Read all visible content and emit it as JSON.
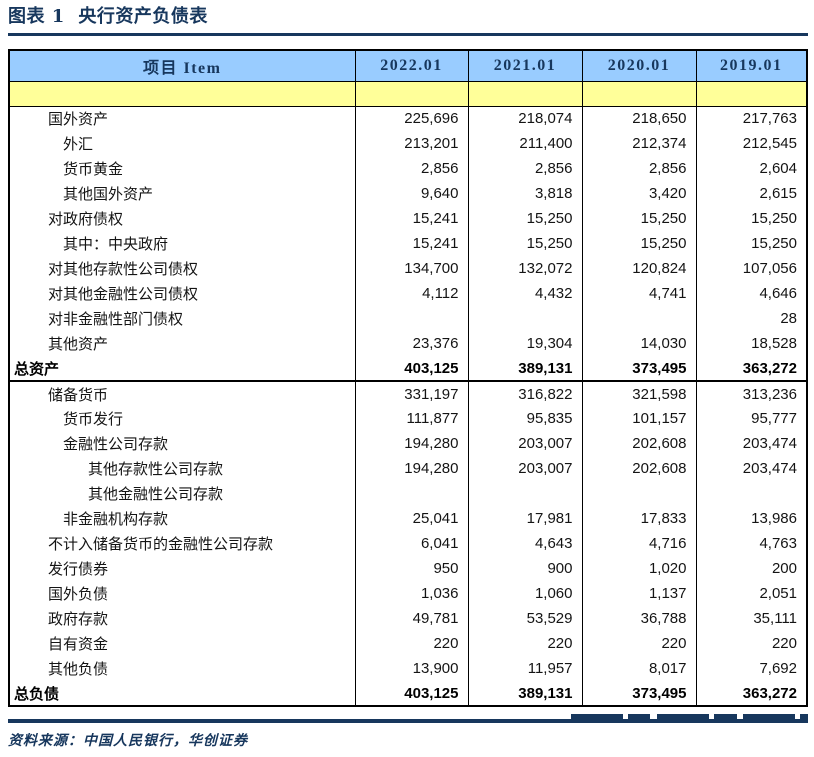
{
  "title": "图表 1  央行资产负债表",
  "source": "资料来源：中国人民银行，华创证券",
  "colors": {
    "navy": "#17375D",
    "headerBlue": "#99CCFF",
    "highlightYellow": "#FFFF99",
    "borderBlack": "#000000"
  },
  "table": {
    "header": [
      "项目 Item",
      "2022.01",
      "2021.01",
      "2020.01",
      "2019.01"
    ],
    "rows": [
      {
        "label": "国外资产",
        "indent": 1,
        "bold": false,
        "section_end": false,
        "values": [
          "225,696",
          "218,074",
          "218,650",
          "217,763"
        ]
      },
      {
        "label": "外汇",
        "indent": 2,
        "bold": false,
        "section_end": false,
        "values": [
          "213,201",
          "211,400",
          "212,374",
          "212,545"
        ]
      },
      {
        "label": "货币黄金",
        "indent": 2,
        "bold": false,
        "section_end": false,
        "values": [
          "2,856",
          "2,856",
          "2,856",
          "2,604"
        ]
      },
      {
        "label": "其他国外资产",
        "indent": 2,
        "bold": false,
        "section_end": false,
        "values": [
          "9,640",
          "3,818",
          "3,420",
          "2,615"
        ]
      },
      {
        "label": "对政府债权",
        "indent": 1,
        "bold": false,
        "section_end": false,
        "values": [
          "15,241",
          "15,250",
          "15,250",
          "15,250"
        ]
      },
      {
        "label": "其中：中央政府",
        "indent": 2,
        "bold": false,
        "section_end": false,
        "values": [
          "15,241",
          "15,250",
          "15,250",
          "15,250"
        ]
      },
      {
        "label": "对其他存款性公司债权",
        "indent": 1,
        "bold": false,
        "section_end": false,
        "values": [
          "134,700",
          "132,072",
          "120,824",
          "107,056"
        ]
      },
      {
        "label": "对其他金融性公司债权",
        "indent": 1,
        "bold": false,
        "section_end": false,
        "values": [
          "4,112",
          "4,432",
          "4,741",
          "4,646"
        ]
      },
      {
        "label": "对非金融性部门债权",
        "indent": 1,
        "bold": false,
        "section_end": false,
        "values": [
          "",
          "",
          "",
          "28"
        ]
      },
      {
        "label": "其他资产",
        "indent": 1,
        "bold": false,
        "section_end": false,
        "values": [
          "23,376",
          "19,304",
          "14,030",
          "18,528"
        ]
      },
      {
        "label": "总资产",
        "indent": 0,
        "bold": true,
        "section_end": true,
        "values": [
          "403,125",
          "389,131",
          "373,495",
          "363,272"
        ]
      },
      {
        "label": "储备货币",
        "indent": 1,
        "bold": false,
        "section_end": false,
        "values": [
          "331,197",
          "316,822",
          "321,598",
          "313,236"
        ]
      },
      {
        "label": "货币发行",
        "indent": 2,
        "bold": false,
        "section_end": false,
        "values": [
          "111,877",
          "95,835",
          "101,157",
          "95,777"
        ]
      },
      {
        "label": "金融性公司存款",
        "indent": 2,
        "bold": false,
        "section_end": false,
        "values": [
          "194,280",
          "203,007",
          "202,608",
          "203,474"
        ]
      },
      {
        "label": "其他存款性公司存款",
        "indent": 3,
        "bold": false,
        "section_end": false,
        "values": [
          "194,280",
          "203,007",
          "202,608",
          "203,474"
        ]
      },
      {
        "label": "其他金融性公司存款",
        "indent": 3,
        "bold": false,
        "section_end": false,
        "values": [
          "",
          "",
          "",
          ""
        ]
      },
      {
        "label": "非金融机构存款",
        "indent": 2,
        "bold": false,
        "section_end": false,
        "values": [
          "25,041",
          "17,981",
          "17,833",
          "13,986"
        ]
      },
      {
        "label": "不计入储备货币的金融性公司存款",
        "indent": 1,
        "bold": false,
        "section_end": false,
        "values": [
          "6,041",
          "4,643",
          "4,716",
          "4,763"
        ]
      },
      {
        "label": "发行债券",
        "indent": 1,
        "bold": false,
        "section_end": false,
        "values": [
          "950",
          "900",
          "1,020",
          "200"
        ]
      },
      {
        "label": "国外负债",
        "indent": 1,
        "bold": false,
        "section_end": false,
        "values": [
          "1,036",
          "1,060",
          "1,137",
          "2,051"
        ]
      },
      {
        "label": "政府存款",
        "indent": 1,
        "bold": false,
        "section_end": false,
        "values": [
          "49,781",
          "53,529",
          "36,788",
          "35,111"
        ]
      },
      {
        "label": "自有资金",
        "indent": 1,
        "bold": false,
        "section_end": false,
        "values": [
          "220",
          "220",
          "220",
          "220"
        ]
      },
      {
        "label": "其他负债",
        "indent": 1,
        "bold": false,
        "section_end": false,
        "values": [
          "13,900",
          "11,957",
          "8,017",
          "7,692"
        ]
      },
      {
        "label": "总负债",
        "indent": 0,
        "bold": true,
        "section_end": false,
        "values": [
          "403,125",
          "389,131",
          "373,495",
          "363,272"
        ]
      }
    ]
  }
}
